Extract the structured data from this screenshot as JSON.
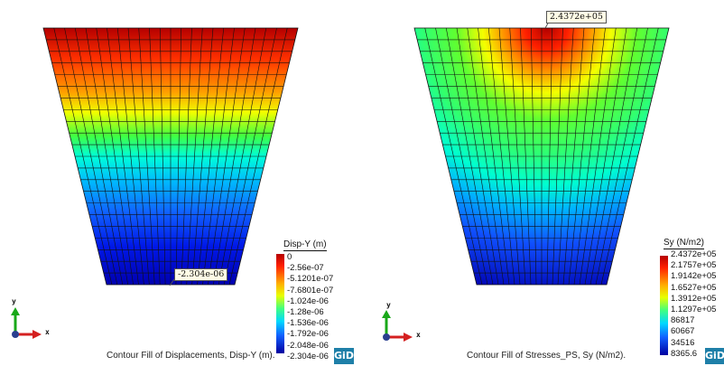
{
  "left": {
    "caption": "Contour Fill of Displacements, Disp-Y (m).",
    "legend_title": "Disp-Y (m)",
    "legend_labels": [
      "0",
      "-2.56e-07",
      "-5.1201e-07",
      "-7.6801e-07",
      "-1.024e-06",
      "-1.28e-06",
      "-1.536e-06",
      "-1.792e-06",
      "-2.048e-06",
      "-2.304e-06"
    ],
    "callout": "-2.304e-06",
    "logo": "GiD"
  },
  "right": {
    "caption": "Contour Fill of Stresses_PS, Sy (N/m2).",
    "legend_title": "Sy (N/m2)",
    "legend_labels": [
      "2.4372e+05",
      "2.1757e+05",
      "1.9142e+05",
      "1.6527e+05",
      "1.3912e+05",
      "1.1297e+05",
      "86817",
      "60667",
      "34516",
      "8365.6"
    ],
    "callout": "2.4372e+05",
    "logo": "GiD"
  },
  "axes": {
    "x": "x",
    "y": "y"
  },
  "colors": {
    "axis_y": "#19a819",
    "axis_x": "#d42020",
    "axis_z": "#2a3f8f"
  }
}
